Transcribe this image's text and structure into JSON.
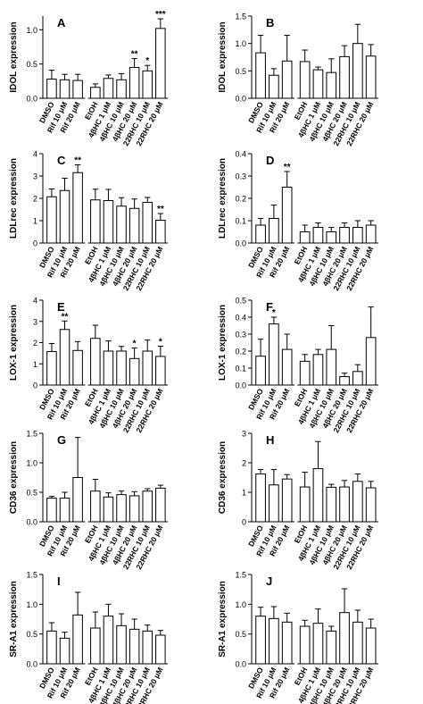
{
  "figure": {
    "categories": [
      "DMSO",
      "Rif 10 μM",
      "Rif 20 μM",
      "EtOH",
      "4βHC 1 μM",
      "4βHC 10 μM",
      "4βHC 20 μM",
      "22RHC 10 μM",
      "22RHC 20 μM"
    ],
    "bar_fill": "#ffffff",
    "bar_stroke": "#000000"
  },
  "chart_data": [
    {
      "panel": "A",
      "type": "bar",
      "ylabel": "IDOL expression",
      "ylim": [
        0,
        1.2
      ],
      "yticks": [
        0.0,
        0.5,
        1.0
      ],
      "values": [
        0.28,
        0.27,
        0.26,
        0.16,
        0.29,
        0.27,
        0.45,
        0.4,
        1.02
      ],
      "errors": [
        0.13,
        0.08,
        0.09,
        0.05,
        0.05,
        0.09,
        0.13,
        0.08,
        0.14
      ],
      "annotations": [
        "",
        "",
        "",
        "",
        "",
        "",
        "**",
        "*",
        "***"
      ]
    },
    {
      "panel": "B",
      "type": "bar",
      "ylabel": "IDOL expression",
      "ylim": [
        0,
        1.5
      ],
      "yticks": [
        0.0,
        0.5,
        1.0,
        1.5
      ],
      "values": [
        0.83,
        0.42,
        0.68,
        0.67,
        0.52,
        0.47,
        0.76,
        1.0,
        0.77
      ],
      "errors": [
        0.32,
        0.12,
        0.47,
        0.21,
        0.05,
        0.25,
        0.2,
        0.35,
        0.21
      ],
      "annotations": [
        "",
        "",
        "",
        "",
        "",
        "",
        "",
        "",
        ""
      ]
    },
    {
      "panel": "C",
      "type": "bar",
      "ylabel": "LDLrec expression",
      "ylim": [
        0,
        4
      ],
      "yticks": [
        0,
        1,
        2,
        3,
        4
      ],
      "values": [
        2.07,
        2.35,
        3.15,
        1.93,
        1.9,
        1.65,
        1.55,
        1.82,
        1.02
      ],
      "errors": [
        0.35,
        0.55,
        0.35,
        0.48,
        0.5,
        0.38,
        0.42,
        0.22,
        0.3
      ],
      "annotations": [
        "",
        "",
        "**",
        "",
        "",
        "",
        "",
        "",
        "**"
      ]
    },
    {
      "panel": "D",
      "type": "bar",
      "ylabel": "LDLrec expression",
      "ylim": [
        0,
        0.4
      ],
      "yticks": [
        0.0,
        0.1,
        0.2,
        0.3,
        0.4
      ],
      "values": [
        0.08,
        0.11,
        0.25,
        0.05,
        0.07,
        0.05,
        0.07,
        0.07,
        0.08
      ],
      "errors": [
        0.03,
        0.06,
        0.07,
        0.03,
        0.02,
        0.02,
        0.02,
        0.03,
        0.02
      ],
      "annotations": [
        "",
        "",
        "**",
        "",
        "",
        "",
        "",
        "",
        ""
      ]
    },
    {
      "panel": "E",
      "type": "bar",
      "ylabel": "LOX-1 expression",
      "ylim": [
        0,
        4
      ],
      "yticks": [
        0,
        1,
        2,
        3,
        4
      ],
      "values": [
        1.58,
        2.62,
        1.63,
        2.2,
        1.6,
        1.6,
        1.25,
        1.6,
        1.35
      ],
      "errors": [
        0.38,
        0.4,
        0.42,
        0.62,
        0.48,
        0.22,
        0.5,
        0.52,
        0.48
      ],
      "annotations": [
        "",
        "**",
        "",
        "",
        "",
        "",
        "*",
        "",
        "*"
      ]
    },
    {
      "panel": "F",
      "type": "bar",
      "ylabel": "LOX-1 expression",
      "ylim": [
        0,
        0.5
      ],
      "yticks": [
        0.0,
        0.1,
        0.2,
        0.3,
        0.4,
        0.5
      ],
      "values": [
        0.17,
        0.36,
        0.21,
        0.14,
        0.18,
        0.21,
        0.05,
        0.08,
        0.28
      ],
      "errors": [
        0.1,
        0.04,
        0.09,
        0.04,
        0.03,
        0.14,
        0.02,
        0.04,
        0.18
      ],
      "annotations": [
        "",
        "*",
        "",
        "",
        "",
        "",
        "",
        "",
        ""
      ]
    },
    {
      "panel": "G",
      "type": "bar",
      "ylabel": "CD36 expression",
      "ylim": [
        0,
        1.5
      ],
      "yticks": [
        0.0,
        0.5,
        1.0,
        1.5
      ],
      "values": [
        0.4,
        0.4,
        0.75,
        0.52,
        0.42,
        0.46,
        0.44,
        0.52,
        0.57
      ],
      "errors": [
        0.03,
        0.1,
        0.68,
        0.2,
        0.07,
        0.06,
        0.07,
        0.04,
        0.05
      ],
      "annotations": [
        "",
        "",
        "",
        "",
        "",
        "",
        "",
        "",
        ""
      ]
    },
    {
      "panel": "H",
      "type": "bar",
      "ylabel": "CD36 expression",
      "ylim": [
        0,
        3
      ],
      "yticks": [
        0,
        1,
        2,
        3
      ],
      "values": [
        1.62,
        1.25,
        1.45,
        1.18,
        1.8,
        1.17,
        1.18,
        1.37,
        1.15
      ],
      "errors": [
        0.15,
        0.52,
        0.15,
        0.5,
        0.92,
        0.1,
        0.22,
        0.25,
        0.22
      ],
      "annotations": [
        "",
        "",
        "",
        "",
        "",
        "",
        "",
        "",
        ""
      ]
    },
    {
      "panel": "I",
      "type": "bar",
      "ylabel": "SR-A1 expression",
      "ylim": [
        0,
        1.5
      ],
      "yticks": [
        0.0,
        0.5,
        1.0,
        1.5
      ],
      "values": [
        0.55,
        0.43,
        0.82,
        0.6,
        0.8,
        0.64,
        0.58,
        0.55,
        0.48
      ],
      "errors": [
        0.14,
        0.1,
        0.38,
        0.27,
        0.2,
        0.2,
        0.17,
        0.1,
        0.08
      ],
      "annotations": [
        "",
        "",
        "",
        "",
        "",
        "",
        "",
        "",
        ""
      ]
    },
    {
      "panel": "J",
      "type": "bar",
      "ylabel": "SR-A1 expression",
      "ylim": [
        0,
        1.5
      ],
      "yticks": [
        0.0,
        0.5,
        1.0,
        1.5
      ],
      "values": [
        0.8,
        0.76,
        0.7,
        0.63,
        0.68,
        0.55,
        0.86,
        0.7,
        0.6
      ],
      "errors": [
        0.15,
        0.2,
        0.15,
        0.1,
        0.24,
        0.08,
        0.4,
        0.2,
        0.15
      ],
      "annotations": [
        "",
        "",
        "",
        "",
        "",
        "",
        "",
        "",
        ""
      ]
    }
  ]
}
